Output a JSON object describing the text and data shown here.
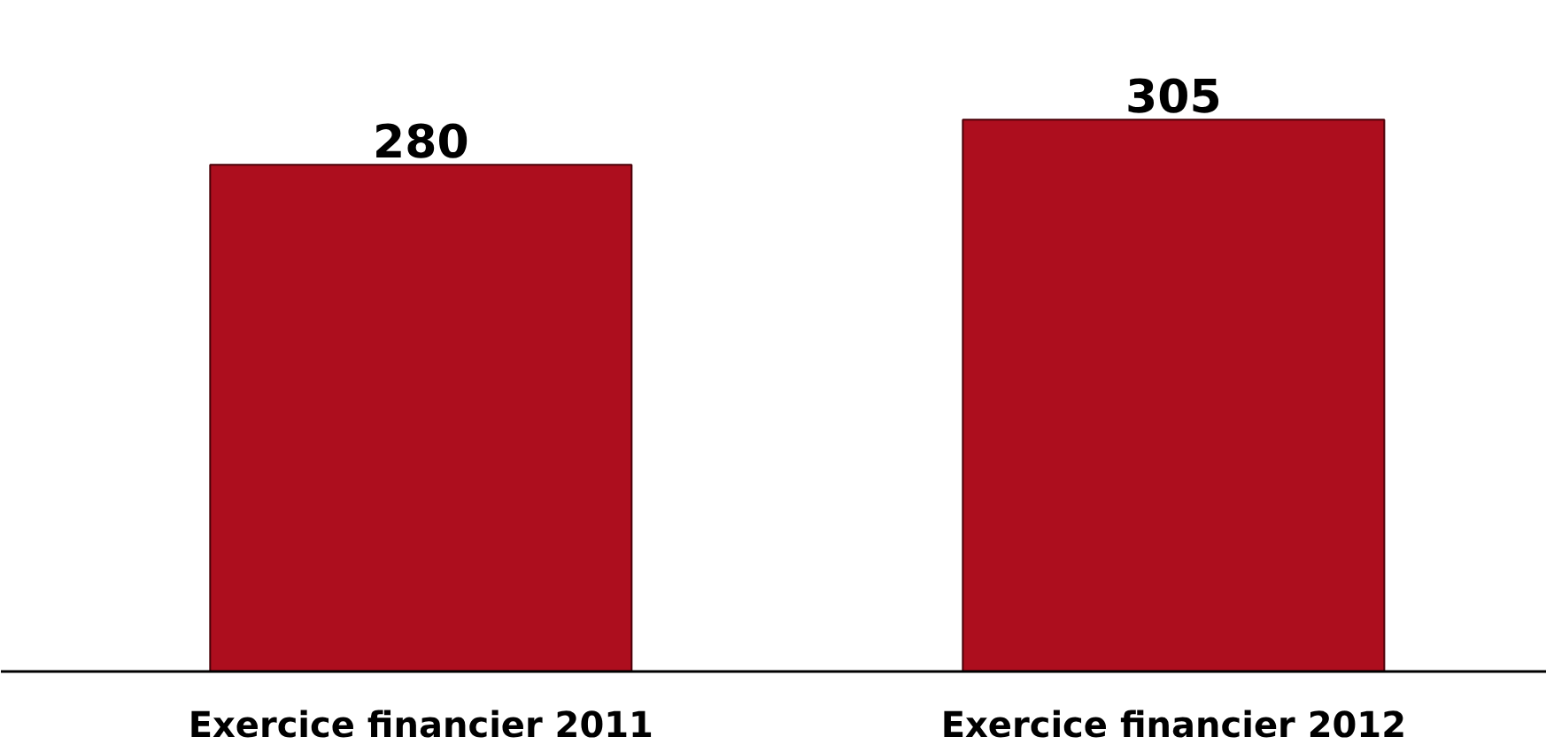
{
  "chart_data": {
    "type": "bar",
    "categories": [
      "Exercice financier 2011",
      "Exercice financier 2012"
    ],
    "values": [
      280,
      305
    ],
    "color": "#ad0e1e",
    "data_labels": true
  }
}
